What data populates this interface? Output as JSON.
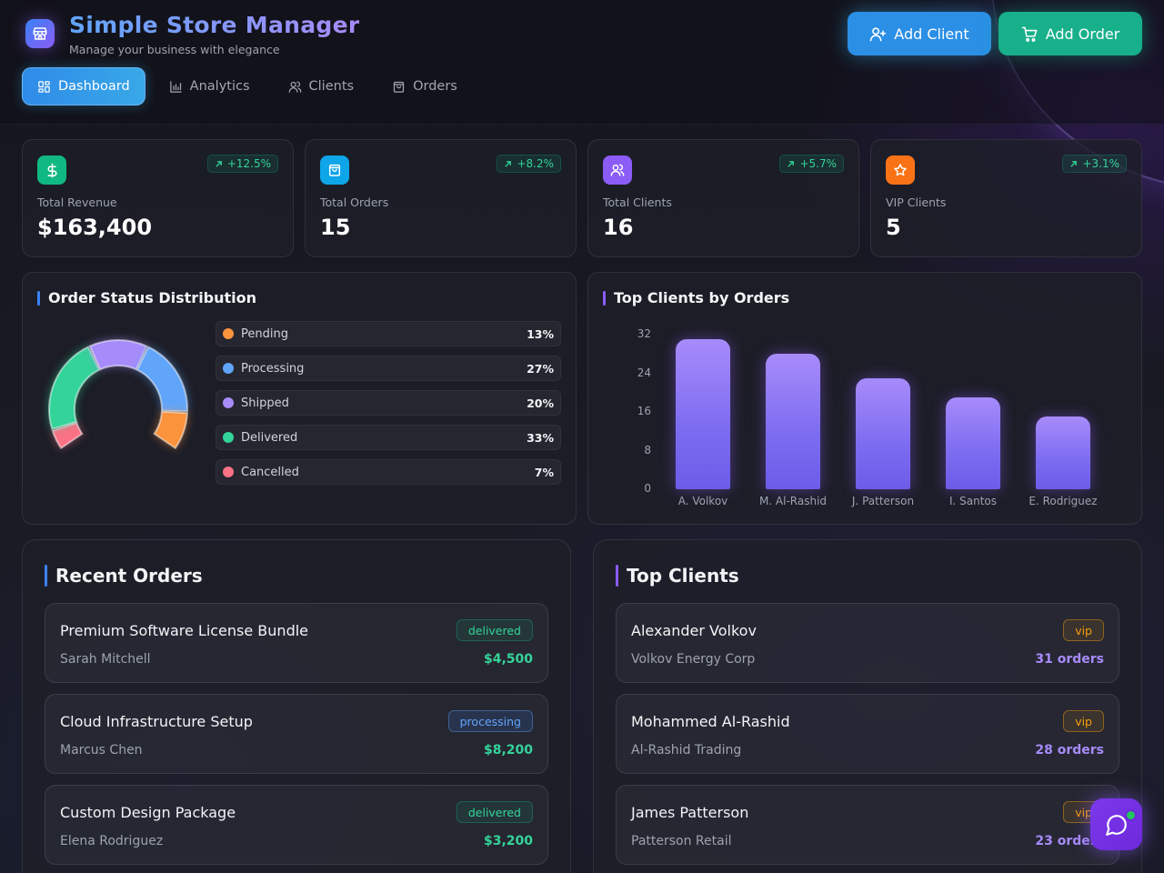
{
  "brand": {
    "title": "Simple Store Manager",
    "subtitle": "Manage your business with elegance",
    "logo_icon": "store-icon"
  },
  "header_actions": {
    "add_client": "Add Client",
    "add_order": "Add Order"
  },
  "nav": [
    {
      "label": "Dashboard",
      "icon": "grid-icon",
      "active": true
    },
    {
      "label": "Analytics",
      "icon": "bar-chart-icon",
      "active": false
    },
    {
      "label": "Clients",
      "icon": "users-icon",
      "active": false
    },
    {
      "label": "Orders",
      "icon": "bag-icon",
      "active": false
    }
  ],
  "stats": [
    {
      "label": "Total Revenue",
      "value": "$163,400",
      "change": "+12.5%",
      "icon": "dollar-icon",
      "color": "#10b981"
    },
    {
      "label": "Total Orders",
      "value": "15",
      "change": "+8.2%",
      "icon": "bag-icon",
      "color": "#0ea5e9"
    },
    {
      "label": "Total Clients",
      "value": "16",
      "change": "+5.7%",
      "icon": "users-icon",
      "color": "#8b5cf6"
    },
    {
      "label": "VIP Clients",
      "value": "5",
      "change": "+3.1%",
      "icon": "star-icon",
      "color": "#f97316"
    }
  ],
  "status_panel": {
    "title": "Order Status Distribution",
    "chart_data": {
      "type": "pie",
      "variant": "half-donut",
      "categories": [
        "Pending",
        "Processing",
        "Shipped",
        "Delivered",
        "Cancelled"
      ],
      "values": [
        13,
        27,
        20,
        33,
        7
      ],
      "value_labels": [
        "13%",
        "27%",
        "20%",
        "33%",
        "7%"
      ],
      "colors": [
        "#fb923c",
        "#60a5fa",
        "#a78bfa",
        "#34d399",
        "#fb7185"
      ]
    }
  },
  "top_clients_chart": {
    "title": "Top Clients by Orders",
    "chart_data": {
      "type": "bar",
      "categories": [
        "A. Volkov",
        "M. Al-Rashid",
        "J. Patterson",
        "I. Santos",
        "E. Rodriguez"
      ],
      "values": [
        31,
        28,
        23,
        19,
        15
      ],
      "yticks": [
        "0",
        "8",
        "16",
        "24",
        "32"
      ],
      "ylim": [
        0,
        32
      ],
      "color": "#8b5cf6"
    }
  },
  "recent_orders": {
    "title": "Recent Orders",
    "items": [
      {
        "title": "Premium Software License Bundle",
        "client": "Sarah Mitchell",
        "status": "delivered",
        "amount": "$4,500"
      },
      {
        "title": "Cloud Infrastructure Setup",
        "client": "Marcus Chen",
        "status": "processing",
        "amount": "$8,200"
      },
      {
        "title": "Custom Design Package",
        "client": "Elena Rodriguez",
        "status": "delivered",
        "amount": "$3,200"
      }
    ]
  },
  "top_clients": {
    "title": "Top Clients",
    "items": [
      {
        "name": "Alexander Volkov",
        "company": "Volkov Energy Corp",
        "tier": "vip",
        "orders": "31 orders"
      },
      {
        "name": "Mohammed Al-Rashid",
        "company": "Al-Rashid Trading",
        "tier": "vip",
        "orders": "28 orders"
      },
      {
        "name": "James Patterson",
        "company": "Patterson Retail",
        "tier": "vip",
        "orders": "23 orders"
      }
    ]
  },
  "chat": {
    "icon": "chat-icon",
    "status_color": "#22c55e"
  }
}
